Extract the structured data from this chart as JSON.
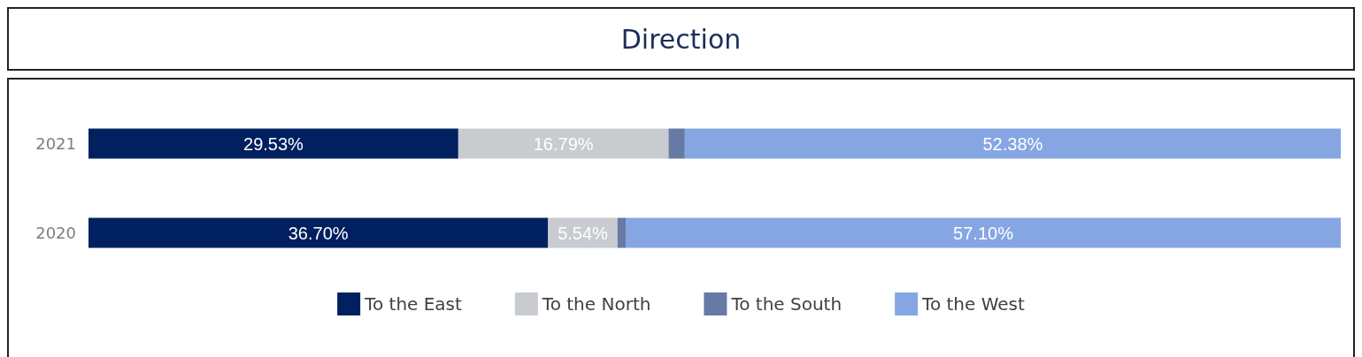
{
  "chart_data": {
    "type": "bar",
    "title": "Direction",
    "orientation": "horizontal",
    "stacked": true,
    "categories": [
      "2021",
      "2020"
    ],
    "xlim": [
      0,
      100
    ],
    "tick_labels": "y",
    "legend": "bottom",
    "series": [
      {
        "name": "To the East",
        "color": "#002060",
        "values": [
          29.53,
          36.7
        ],
        "value_labels": [
          "29.53%",
          "36.70%"
        ]
      },
      {
        "name": "To the North",
        "color": "#c8cbcf",
        "values": [
          16.79,
          5.54
        ],
        "value_labels": [
          "16.79%",
          "5.54%"
        ]
      },
      {
        "name": "To the South",
        "color": "#667aa3",
        "values": [
          1.3,
          0.66
        ],
        "value_labels": [
          null,
          null
        ]
      },
      {
        "name": "To the West",
        "color": "#86a6e3",
        "values": [
          52.38,
          57.1
        ],
        "value_labels": [
          "52.38%",
          "57.10%"
        ]
      }
    ]
  }
}
